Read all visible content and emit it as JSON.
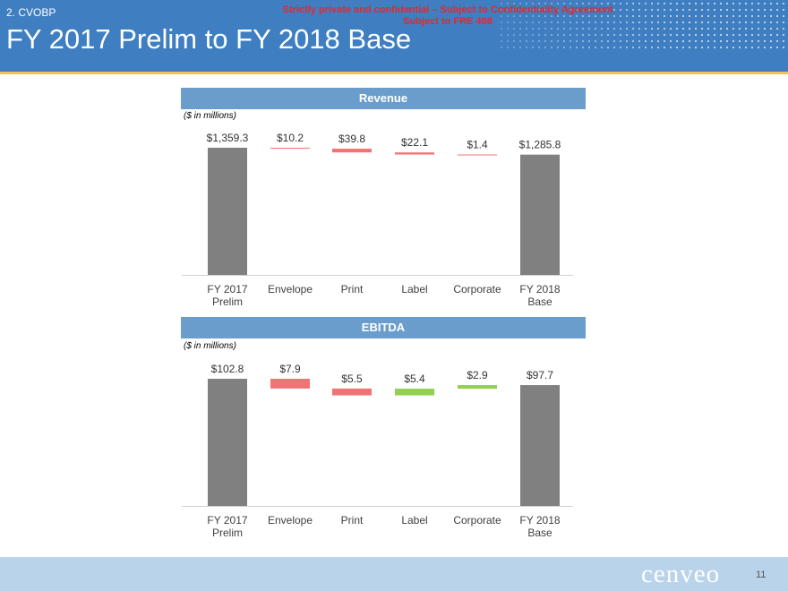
{
  "header": {
    "section": "2. CVOBP",
    "confidential_line1": "Strictly private and confidential – Subject to Confidentiality Agreement",
    "confidential_line2": "Subject to FRE 408",
    "title": "FY 2017 Prelim to FY 2018 Base"
  },
  "colors": {
    "header_bg": "#3f7ec1",
    "band_bg": "#6a9dcc",
    "total_bar": "#808080",
    "decrease_bar": "#f07376",
    "increase_bar": "#92d050",
    "confidential_text": "#e8262b"
  },
  "chart_data": [
    {
      "type": "waterfall",
      "title": "Revenue",
      "units_note": "($ in millions)",
      "categories": [
        "FY 2017\nPrelim",
        "Envelope",
        "Print",
        "Label",
        "Corporate",
        "FY 2018\nBase"
      ],
      "values": [
        1359.3,
        -10.2,
        -39.8,
        -22.1,
        -1.4,
        1285.8
      ],
      "kinds": [
        "total",
        "decrease",
        "decrease",
        "decrease",
        "decrease",
        "total"
      ],
      "labels": [
        "$1,359.3",
        "$10.2",
        "$39.8",
        "$22.1",
        "$1.4",
        "$1,285.8"
      ],
      "ylim": [
        0,
        1400
      ]
    },
    {
      "type": "waterfall",
      "title": "EBITDA",
      "units_note": "($ in millions)",
      "categories": [
        "FY 2017\nPrelim",
        "Envelope",
        "Print",
        "Label",
        "Corporate",
        "FY 2018\nBase"
      ],
      "values": [
        102.8,
        -7.9,
        -5.5,
        5.4,
        2.9,
        97.7
      ],
      "kinds": [
        "total",
        "decrease",
        "decrease",
        "increase",
        "increase",
        "total"
      ],
      "labels": [
        "$102.8",
        "$7.9",
        "$5.5",
        "$5.4",
        "$2.9",
        "$97.7"
      ],
      "ylim": [
        0,
        110
      ]
    }
  ],
  "footer": {
    "logo": "cenveo",
    "page_number": "11"
  }
}
